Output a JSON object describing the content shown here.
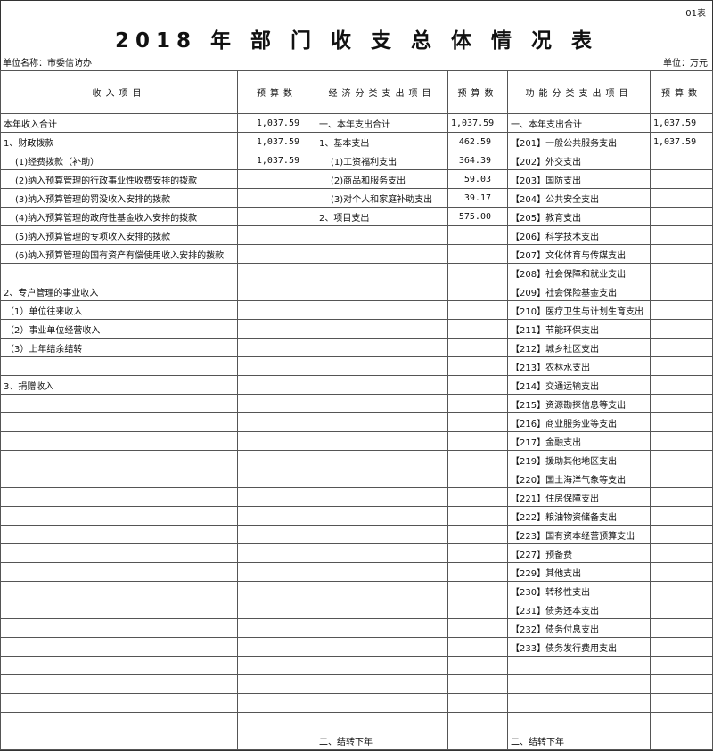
{
  "sheet_no": "01表",
  "title": "2018 年 部 门 收 支 总 体 情 况 表",
  "unit_name": "单位名称：市委信访办",
  "unit": "单位：万元",
  "headers": [
    "收入项目",
    "预算数",
    "经济分类支出项目",
    "预算数",
    "功能分类支出项目",
    "预算数"
  ],
  "income": [
    [
      "本年收入合计",
      "1,037.59"
    ],
    [
      "1、财政拨款",
      "1,037.59"
    ],
    [
      "(1)经费拨款（补助）",
      "1,037.59"
    ],
    [
      "(2)纳入预算管理的行政事业性收费安排的拨款",
      ""
    ],
    [
      "(3)纳入预算管理的罚没收入安排的拨款",
      ""
    ],
    [
      "(4)纳入预算管理的政府性基金收入安排的拨款",
      ""
    ],
    [
      "(5)纳入预算管理的专项收入安排的拨款",
      ""
    ],
    [
      "(6)纳入预算管理的国有资产有偿使用收入安排的拨款",
      ""
    ],
    [
      "",
      ""
    ],
    [
      "2、专户管理的事业收入",
      ""
    ],
    [
      "（1）单位往来收入",
      ""
    ],
    [
      "（2）事业单位经营收入",
      ""
    ],
    [
      "（3）上年结余结转",
      ""
    ],
    [
      "",
      ""
    ],
    [
      "3、捐赠收入",
      ""
    ]
  ],
  "econ": [
    [
      "一、本年支出合计",
      "1,037.59"
    ],
    [
      "1、基本支出",
      "462.59"
    ],
    [
      "(1)工资福利支出",
      "364.39"
    ],
    [
      "(2)商品和服务支出",
      "59.03"
    ],
    [
      "(3)对个人和家庭补助支出",
      "39.17"
    ],
    [
      "2、项目支出",
      "575.00"
    ]
  ],
  "func": [
    [
      "一、本年支出合计",
      "1,037.59"
    ],
    [
      "【201】一般公共服务支出",
      "1,037.59"
    ],
    [
      "【202】外交支出",
      ""
    ],
    [
      "【203】国防支出",
      ""
    ],
    [
      "【204】公共安全支出",
      ""
    ],
    [
      "【205】教育支出",
      ""
    ],
    [
      "【206】科学技术支出",
      ""
    ],
    [
      "【207】文化体育与传媒支出",
      ""
    ],
    [
      "【208】社会保障和就业支出",
      ""
    ],
    [
      "【209】社会保险基金支出",
      ""
    ],
    [
      "【210】医疗卫生与计划生育支出",
      ""
    ],
    [
      "【211】节能环保支出",
      ""
    ],
    [
      "【212】城乡社区支出",
      ""
    ],
    [
      "【213】农林水支出",
      ""
    ],
    [
      "【214】交通运输支出",
      ""
    ],
    [
      "【215】资源勘探信息等支出",
      ""
    ],
    [
      "【216】商业服务业等支出",
      ""
    ],
    [
      "【217】金融支出",
      ""
    ],
    [
      "【219】援助其他地区支出",
      ""
    ],
    [
      "【220】国土海洋气象等支出",
      ""
    ],
    [
      "【221】住房保障支出",
      ""
    ],
    [
      "【222】粮油物资储备支出",
      ""
    ],
    [
      "【223】国有资本经营预算支出",
      ""
    ],
    [
      "【227】预备费",
      ""
    ],
    [
      "【229】其他支出",
      ""
    ],
    [
      "【230】转移性支出",
      ""
    ],
    [
      "【231】债务还本支出",
      ""
    ],
    [
      "【232】债务付息支出",
      ""
    ],
    [
      "【233】债务发行费用支出",
      ""
    ]
  ],
  "carry_forward": {
    "econ": "二、结转下年",
    "func": "二、结转下年"
  }
}
